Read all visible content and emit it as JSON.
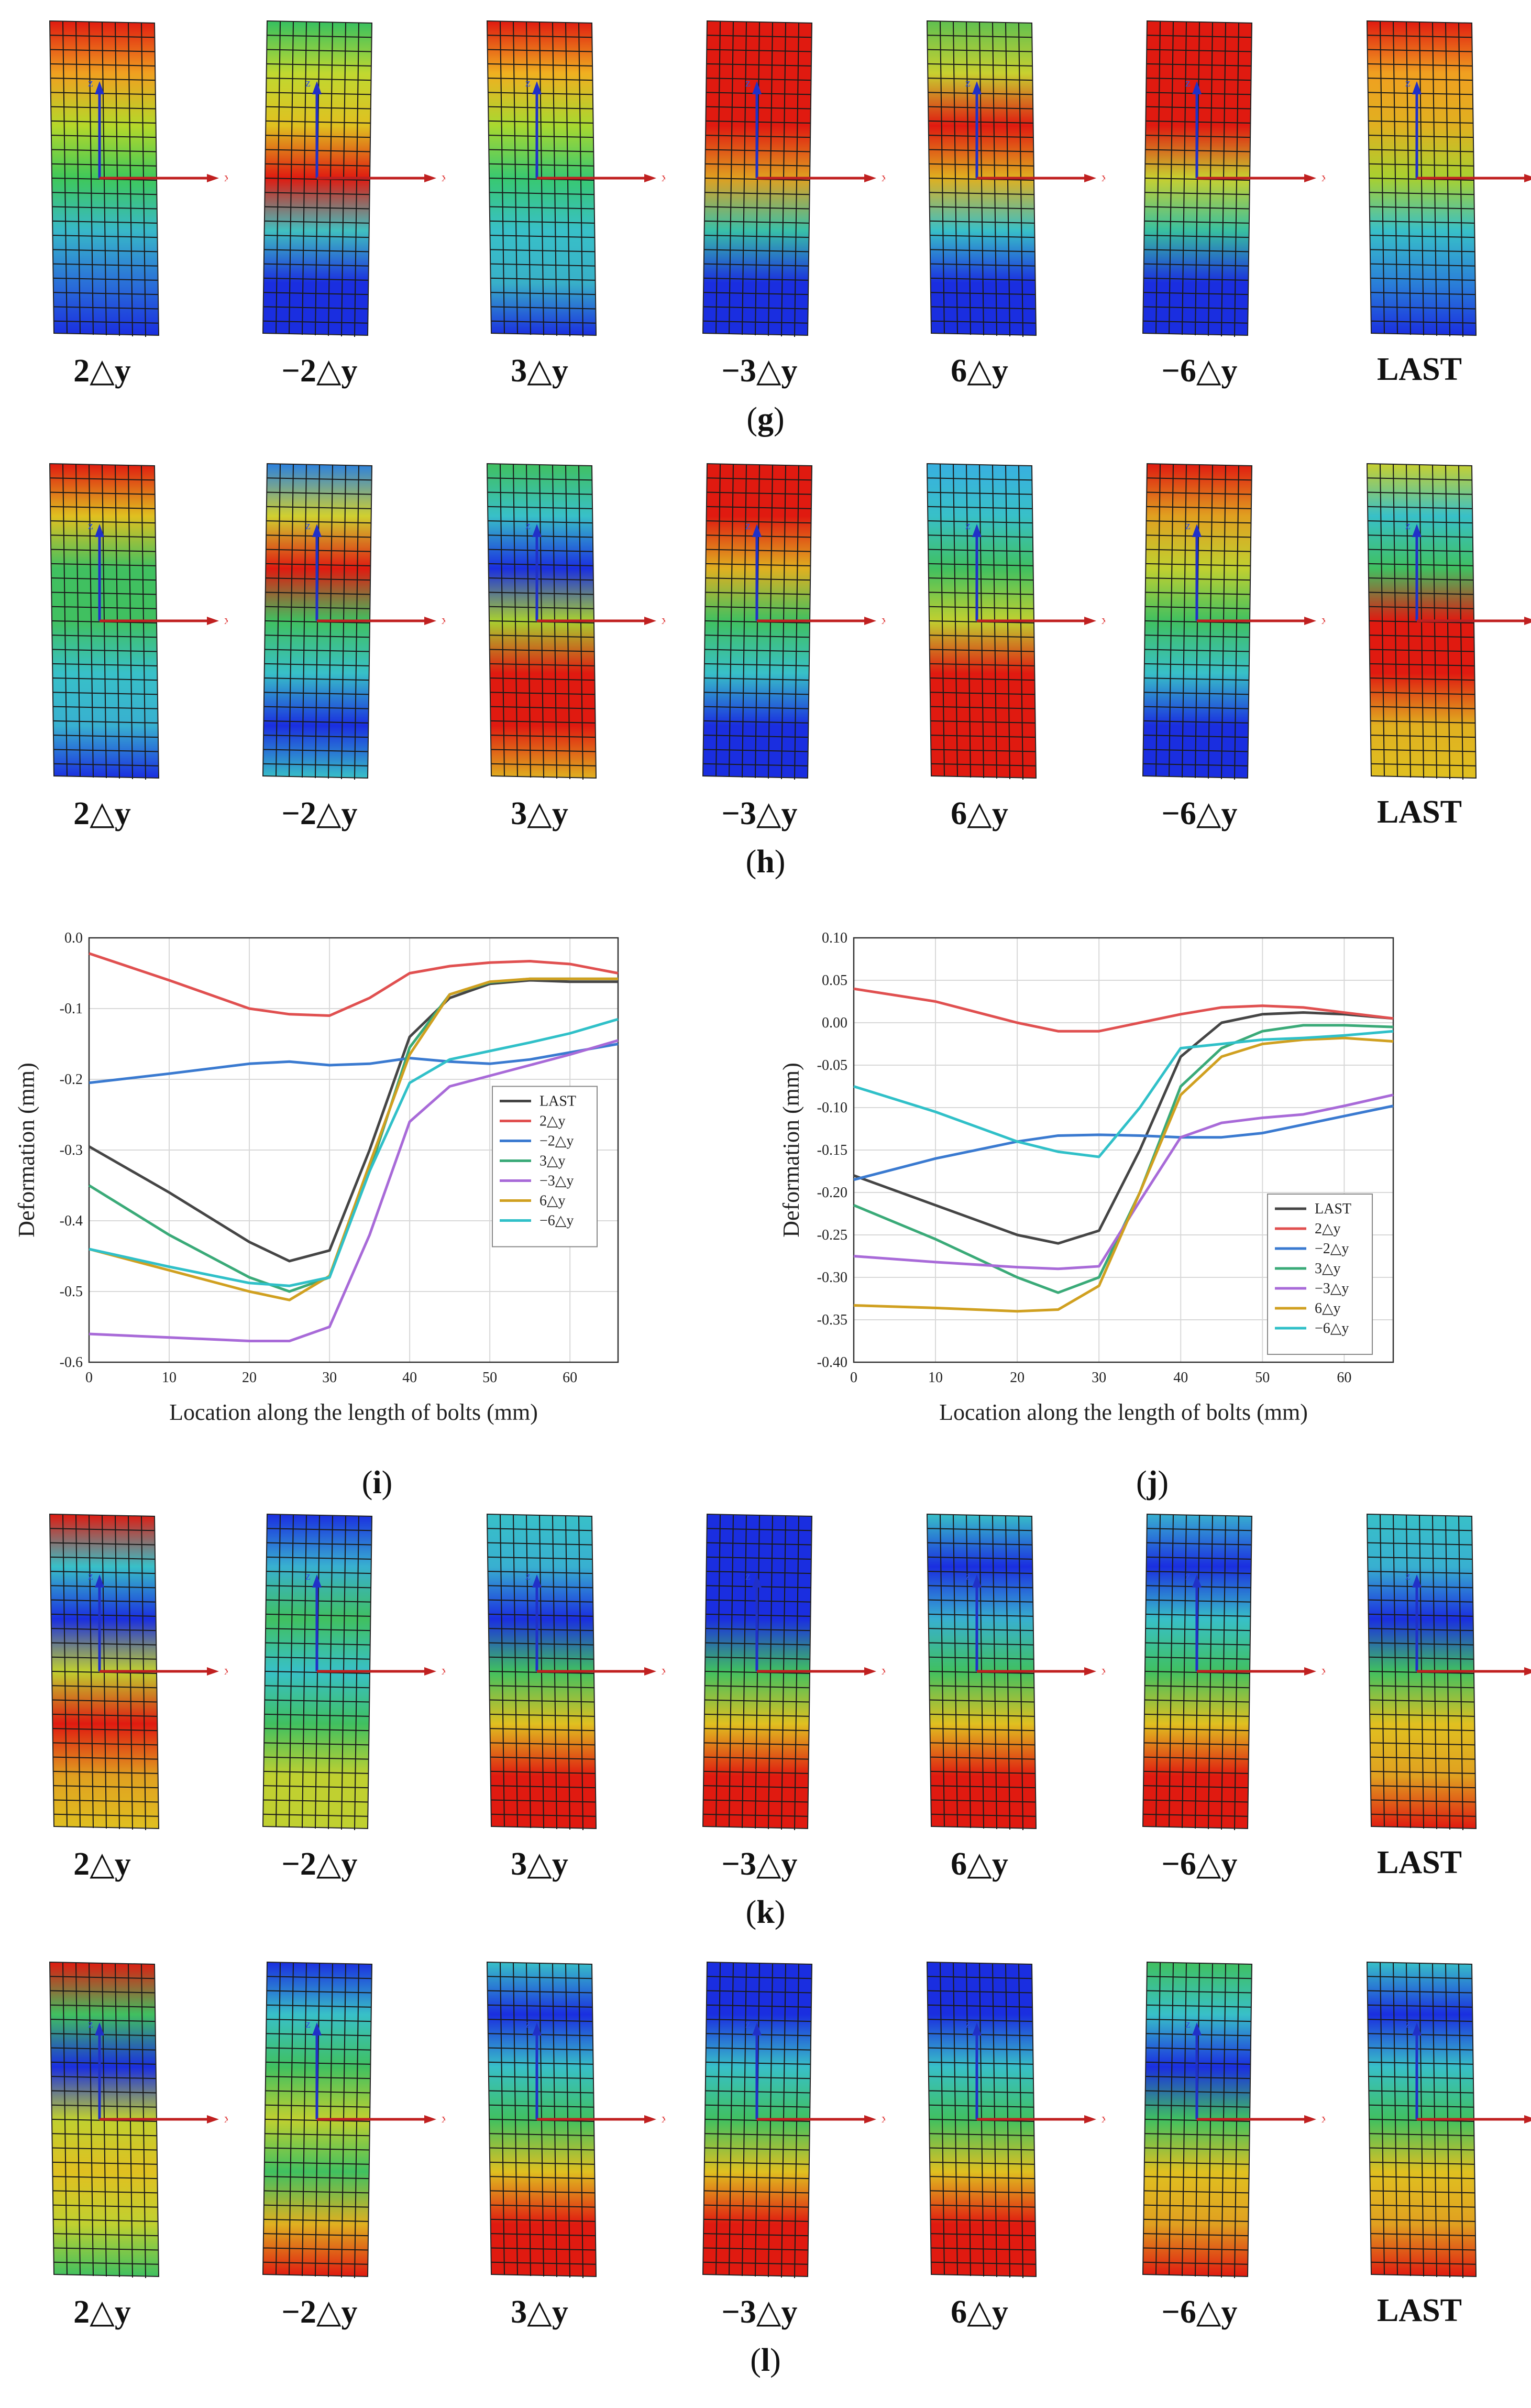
{
  "figure_rows": [
    {
      "id": "g",
      "caption": "g",
      "labels": [
        "2△y",
        "−2△y",
        "3△y",
        "−3△y",
        "6△y",
        "−6△y",
        "LAST"
      ],
      "bands": [
        [
          "#e01a10",
          "#f0a020",
          "#b5d82a",
          "#3ec85a",
          "#38b8c8",
          "#2a70d8",
          "#1a2ee0"
        ],
        [
          "#36c060",
          "#c0d830",
          "#e0c020",
          "#e01a10",
          "#40c0c0",
          "#1a2ee0",
          "#1a2ee0"
        ],
        [
          "#e01a10",
          "#f0b020",
          "#a8d830",
          "#38c870",
          "#38c0c8",
          "#38b0c8",
          "#1a2ee0"
        ],
        [
          "#e01a10",
          "#e01a10",
          "#e01a10",
          "#e0a020",
          "#38c0a8",
          "#1a2ee0",
          "#1a2ee0"
        ],
        [
          "#60c050",
          "#c8d030",
          "#e01a10",
          "#e0b020",
          "#38c0c8",
          "#1a2ee0",
          "#1a2ee0"
        ],
        [
          "#e01a10",
          "#e01a10",
          "#e01a10",
          "#c8d030",
          "#38c0a0",
          "#1a2ee0",
          "#1a2ee0"
        ],
        [
          "#e01a10",
          "#f0a020",
          "#e0b020",
          "#a8d030",
          "#38c0c8",
          "#2a80d8",
          "#1a2ee0"
        ]
      ]
    },
    {
      "id": "h",
      "caption": "h",
      "labels": [
        "2△y",
        "−2△y",
        "3△y",
        "−3△y",
        "6△y",
        "−6△y",
        "LAST"
      ],
      "bands": [
        [
          "#e01a10",
          "#e0c020",
          "#40c060",
          "#40c060",
          "#38c0c8",
          "#38b0d0",
          "#1a2ee0"
        ],
        [
          "#2a80e0",
          "#d0d030",
          "#e01a10",
          "#40c060",
          "#38c0c8",
          "#1a2ee0",
          "#38c0c8"
        ],
        [
          "#40c060",
          "#38c0c8",
          "#1a2ee0",
          "#a8d030",
          "#e01a10",
          "#e01a10",
          "#e0b020"
        ],
        [
          "#e01a10",
          "#e01a10",
          "#e0b020",
          "#40c060",
          "#38c0c8",
          "#1a2ee0",
          "#1a2ee0"
        ],
        [
          "#38b0e0",
          "#38c0c8",
          "#40c060",
          "#c0d030",
          "#e01a10",
          "#e01a10",
          "#e01a10"
        ],
        [
          "#e01a10",
          "#e0a020",
          "#c0d030",
          "#40c060",
          "#38c0c8",
          "#1a2ee0",
          "#1a2ee0"
        ],
        [
          "#c8d030",
          "#38c0c8",
          "#40c060",
          "#e01a10",
          "#e01a10",
          "#e0b020",
          "#e0c020"
        ]
      ]
    },
    {
      "id": "k",
      "caption": "k",
      "labels": [
        "2△y",
        "−2△y",
        "3△y",
        "−3△y",
        "6△y",
        "−6△y",
        "LAST"
      ],
      "bands": [
        [
          "#e01a10",
          "#38c0c8",
          "#1a2ee0",
          "#c0d030",
          "#e01a10",
          "#e0a020",
          "#e0c020"
        ],
        [
          "#1a2ee0",
          "#38b0d0",
          "#40c060",
          "#38c0c8",
          "#40c060",
          "#c0d030",
          "#c0d030"
        ],
        [
          "#38c0c8",
          "#38b0d0",
          "#1a2ee0",
          "#40c060",
          "#e0c020",
          "#e01a10",
          "#e01a10"
        ],
        [
          "#1a2ee0",
          "#1a2ee0",
          "#1a2ee0",
          "#40c060",
          "#e0c020",
          "#e01a10",
          "#e01a10"
        ],
        [
          "#38c0c8",
          "#1a2ee0",
          "#38b0d0",
          "#40c060",
          "#e0c020",
          "#e01a10",
          "#e01a10"
        ],
        [
          "#38b0d0",
          "#1a2ee0",
          "#38c0c8",
          "#40c060",
          "#e0c020",
          "#e01a10",
          "#e01a10"
        ],
        [
          "#38c0c8",
          "#38b0d0",
          "#1a2ee0",
          "#40c060",
          "#e0c020",
          "#e0a020",
          "#e01a10"
        ]
      ]
    },
    {
      "id": "l",
      "caption": "l",
      "labels": [
        "2△y",
        "−2△y",
        "3△y",
        "−3△y",
        "6△y",
        "−6△y",
        "LAST"
      ],
      "bands": [
        [
          "#e01a10",
          "#40c060",
          "#1a2ee0",
          "#c0d030",
          "#e0c020",
          "#c0d030",
          "#40c060"
        ],
        [
          "#1a2ee0",
          "#38c0c8",
          "#40c060",
          "#c0d030",
          "#40c060",
          "#e0b020",
          "#e01a10"
        ],
        [
          "#38c0c8",
          "#1a2ee0",
          "#38c0c8",
          "#40c060",
          "#e0c020",
          "#e01a10",
          "#e01a10"
        ],
        [
          "#1a2ee0",
          "#1a2ee0",
          "#38c0c8",
          "#40c060",
          "#e0c020",
          "#e01a10",
          "#e01a10"
        ],
        [
          "#1a2ee0",
          "#1a2ee0",
          "#38c0c8",
          "#40c060",
          "#e0c020",
          "#e01a10",
          "#e01a10"
        ],
        [
          "#40c060",
          "#38c0c8",
          "#1a2ee0",
          "#40c060",
          "#e0c020",
          "#e0a020",
          "#e01a10"
        ],
        [
          "#38c0c8",
          "#1a2ee0",
          "#38c0c8",
          "#40c060",
          "#e0c020",
          "#e0a020",
          "#e01a10"
        ]
      ]
    }
  ],
  "chart_captions": {
    "i": "i",
    "j": "j"
  },
  "chart_data": [
    {
      "id": "i",
      "type": "line",
      "xlabel": "Location along the length of bolts (mm)",
      "ylabel": "Deformation (mm)",
      "xlim": [
        0,
        66
      ],
      "ylim": [
        -0.6,
        0.0
      ],
      "xticks": [
        0,
        10,
        20,
        30,
        40,
        50,
        60
      ],
      "yticks": [
        0.0,
        -0.1,
        -0.2,
        -0.3,
        -0.4,
        -0.5,
        -0.6
      ],
      "ytick_labels": [
        "0.0",
        "-0.1",
        "-0.2",
        "-0.3",
        "-0.4",
        "-0.5",
        "-0.6"
      ],
      "grid": true,
      "legend": "center-right",
      "series": [
        {
          "name": "LAST",
          "color": "#454545",
          "x": [
            0,
            10,
            20,
            25,
            30,
            35,
            40,
            45,
            50,
            55,
            60,
            66
          ],
          "y": [
            -0.295,
            -0.36,
            -0.43,
            -0.457,
            -0.442,
            -0.3,
            -0.14,
            -0.085,
            -0.065,
            -0.06,
            -0.062,
            -0.062
          ]
        },
        {
          "name": "2△y",
          "color": "#e05050",
          "x": [
            0,
            10,
            20,
            25,
            30,
            35,
            40,
            45,
            50,
            55,
            60,
            66
          ],
          "y": [
            -0.022,
            -0.06,
            -0.1,
            -0.108,
            -0.11,
            -0.085,
            -0.05,
            -0.04,
            -0.035,
            -0.033,
            -0.037,
            -0.05
          ]
        },
        {
          "name": "−2△y",
          "color": "#3a7ad0",
          "x": [
            0,
            10,
            20,
            25,
            30,
            35,
            40,
            45,
            50,
            55,
            60,
            66
          ],
          "y": [
            -0.205,
            -0.192,
            -0.178,
            -0.175,
            -0.18,
            -0.178,
            -0.17,
            -0.175,
            -0.178,
            -0.172,
            -0.162,
            -0.15
          ]
        },
        {
          "name": "3△y",
          "color": "#3aaa78",
          "x": [
            0,
            10,
            20,
            25,
            30,
            35,
            40,
            45,
            50,
            55,
            60,
            66
          ],
          "y": [
            -0.35,
            -0.42,
            -0.48,
            -0.5,
            -0.48,
            -0.33,
            -0.155,
            -0.08,
            -0.063,
            -0.058,
            -0.058,
            -0.058
          ]
        },
        {
          "name": "−3△y",
          "color": "#a86ad8",
          "x": [
            0,
            10,
            20,
            25,
            30,
            35,
            40,
            45,
            50,
            55,
            60,
            66
          ],
          "y": [
            -0.56,
            -0.565,
            -0.57,
            -0.57,
            -0.55,
            -0.42,
            -0.26,
            -0.21,
            -0.195,
            -0.18,
            -0.165,
            -0.145
          ]
        },
        {
          "name": "6△y",
          "color": "#d0a020",
          "x": [
            0,
            10,
            20,
            25,
            30,
            35,
            40,
            45,
            50,
            55,
            60,
            66
          ],
          "y": [
            -0.44,
            -0.47,
            -0.5,
            -0.512,
            -0.478,
            -0.32,
            -0.165,
            -0.08,
            -0.062,
            -0.058,
            -0.058,
            -0.058
          ]
        },
        {
          "name": "−6△y",
          "color": "#30c0c8",
          "x": [
            0,
            10,
            20,
            25,
            30,
            35,
            40,
            45,
            50,
            55,
            60,
            66
          ],
          "y": [
            -0.44,
            -0.465,
            -0.488,
            -0.492,
            -0.48,
            -0.33,
            -0.205,
            -0.172,
            -0.16,
            -0.148,
            -0.135,
            -0.115
          ]
        }
      ]
    },
    {
      "id": "j",
      "type": "line",
      "xlabel": "Location along the length of bolts (mm)",
      "ylabel": "Deformation (mm)",
      "xlim": [
        0,
        66
      ],
      "ylim": [
        -0.4,
        0.1
      ],
      "xticks": [
        0,
        10,
        20,
        30,
        40,
        50,
        60
      ],
      "yticks": [
        0.1,
        0.05,
        0.0,
        -0.05,
        -0.1,
        -0.15,
        -0.2,
        -0.25,
        -0.3,
        -0.35,
        -0.4
      ],
      "ytick_labels": [
        "0.10",
        "0.05",
        "0.00",
        "-0.05",
        "-0.10",
        "-0.15",
        "-0.20",
        "-0.25",
        "-0.30",
        "-0.35",
        "-0.40"
      ],
      "grid": true,
      "legend": "bottom-right",
      "series": [
        {
          "name": "LAST",
          "color": "#454545",
          "x": [
            0,
            10,
            20,
            25,
            30,
            35,
            40,
            45,
            50,
            55,
            60,
            66
          ],
          "y": [
            -0.18,
            -0.215,
            -0.25,
            -0.26,
            -0.245,
            -0.15,
            -0.04,
            0.0,
            0.01,
            0.012,
            0.01,
            0.005
          ]
        },
        {
          "name": "2△y",
          "color": "#e05050",
          "x": [
            0,
            10,
            20,
            25,
            30,
            35,
            40,
            45,
            50,
            55,
            60,
            66
          ],
          "y": [
            0.04,
            0.025,
            0.0,
            -0.01,
            -0.01,
            0.0,
            0.01,
            0.018,
            0.02,
            0.018,
            0.012,
            0.005
          ]
        },
        {
          "name": "−2△y",
          "color": "#3a7ad0",
          "x": [
            0,
            10,
            20,
            25,
            30,
            35,
            40,
            45,
            50,
            55,
            60,
            66
          ],
          "y": [
            -0.185,
            -0.16,
            -0.14,
            -0.133,
            -0.132,
            -0.133,
            -0.135,
            -0.135,
            -0.13,
            -0.12,
            -0.11,
            -0.098
          ]
        },
        {
          "name": "3△y",
          "color": "#3aaa78",
          "x": [
            0,
            10,
            20,
            25,
            30,
            35,
            40,
            45,
            50,
            55,
            60,
            66
          ],
          "y": [
            -0.215,
            -0.255,
            -0.3,
            -0.318,
            -0.3,
            -0.2,
            -0.075,
            -0.03,
            -0.01,
            -0.003,
            -0.003,
            -0.005
          ]
        },
        {
          "name": "−3△y",
          "color": "#a86ad8",
          "x": [
            0,
            10,
            20,
            25,
            30,
            35,
            40,
            45,
            50,
            55,
            60,
            66
          ],
          "y": [
            -0.275,
            -0.282,
            -0.288,
            -0.29,
            -0.287,
            -0.21,
            -0.135,
            -0.118,
            -0.112,
            -0.108,
            -0.098,
            -0.085
          ]
        },
        {
          "name": "6△y",
          "color": "#d0a020",
          "x": [
            0,
            10,
            20,
            25,
            30,
            35,
            40,
            45,
            50,
            55,
            60,
            66
          ],
          "y": [
            -0.333,
            -0.336,
            -0.34,
            -0.338,
            -0.31,
            -0.2,
            -0.085,
            -0.04,
            -0.025,
            -0.02,
            -0.018,
            -0.022
          ]
        },
        {
          "name": "−6△y",
          "color": "#30c0c8",
          "x": [
            0,
            10,
            20,
            25,
            30,
            35,
            40,
            45,
            50,
            55,
            60,
            66
          ],
          "y": [
            -0.075,
            -0.105,
            -0.14,
            -0.152,
            -0.158,
            -0.1,
            -0.03,
            -0.025,
            -0.02,
            -0.018,
            -0.015,
            -0.01
          ]
        }
      ]
    }
  ]
}
